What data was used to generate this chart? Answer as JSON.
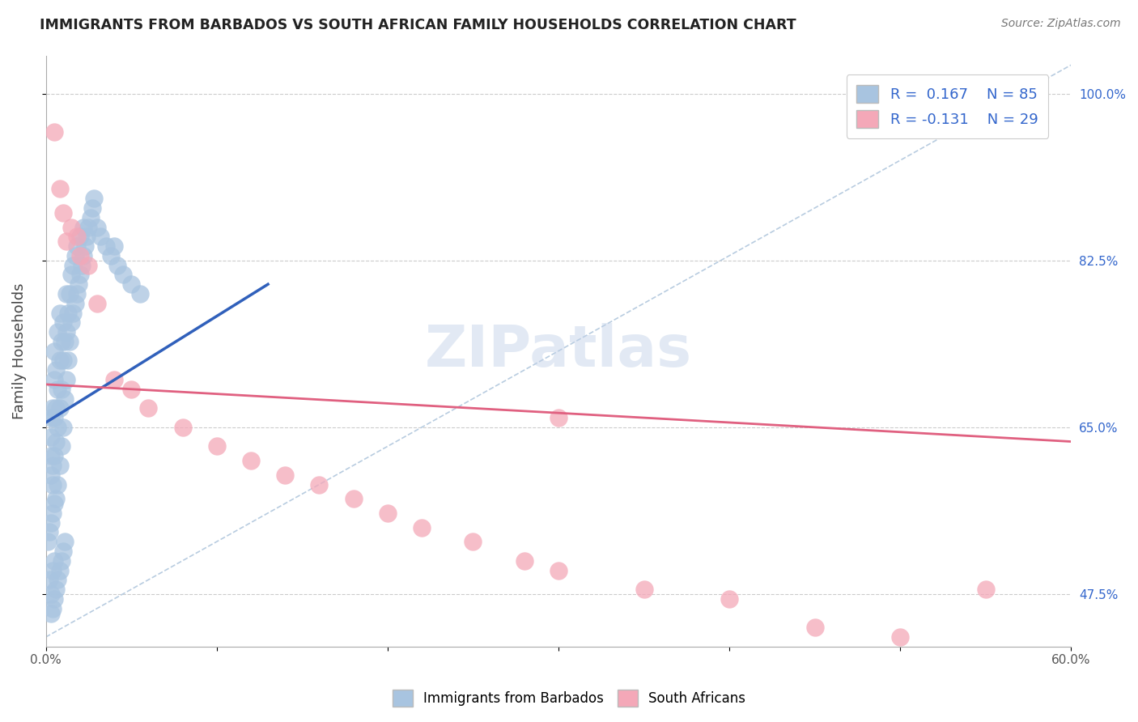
{
  "title": "IMMIGRANTS FROM BARBADOS VS SOUTH AFRICAN FAMILY HOUSEHOLDS CORRELATION CHART",
  "source": "Source: ZipAtlas.com",
  "ylabel": "Family Households",
  "xlim": [
    0.0,
    0.6
  ],
  "ylim": [
    0.42,
    1.04
  ],
  "ytick_positions": [
    0.475,
    0.65,
    0.825,
    1.0
  ],
  "ytick_labels": [
    "47.5%",
    "65.0%",
    "82.5%",
    "100.0%"
  ],
  "blue_R": 0.167,
  "blue_N": 85,
  "pink_R": -0.131,
  "pink_N": 29,
  "blue_color": "#a8c4e0",
  "pink_color": "#f4a8b8",
  "blue_line_color": "#3060bb",
  "pink_line_color": "#e06080",
  "diag_line_color": "#b8cce0",
  "watermark": "ZIPatlas",
  "legend_label_blue": "Immigrants from Barbados",
  "legend_label_pink": "South Africans",
  "blue_line_x": [
    0.0,
    0.13
  ],
  "blue_line_y": [
    0.655,
    0.8
  ],
  "pink_line_x": [
    0.0,
    0.6
  ],
  "pink_line_y": [
    0.695,
    0.635
  ],
  "diag_line_x": [
    0.0,
    0.6
  ],
  "diag_line_y": [
    0.43,
    1.03
  ],
  "blue_points_x": [
    0.001,
    0.002,
    0.002,
    0.003,
    0.003,
    0.003,
    0.003,
    0.003,
    0.004,
    0.004,
    0.004,
    0.004,
    0.004,
    0.005,
    0.005,
    0.005,
    0.005,
    0.005,
    0.005,
    0.006,
    0.006,
    0.006,
    0.006,
    0.007,
    0.007,
    0.007,
    0.007,
    0.008,
    0.008,
    0.008,
    0.008,
    0.009,
    0.009,
    0.009,
    0.01,
    0.01,
    0.01,
    0.011,
    0.011,
    0.012,
    0.012,
    0.012,
    0.013,
    0.013,
    0.014,
    0.014,
    0.015,
    0.015,
    0.016,
    0.016,
    0.017,
    0.017,
    0.018,
    0.018,
    0.019,
    0.02,
    0.02,
    0.021,
    0.022,
    0.022,
    0.023,
    0.024,
    0.025,
    0.026,
    0.027,
    0.028,
    0.03,
    0.032,
    0.035,
    0.038,
    0.04,
    0.042,
    0.045,
    0.05,
    0.055,
    0.004,
    0.005,
    0.006,
    0.007,
    0.008,
    0.009,
    0.01,
    0.011,
    0.003,
    0.003
  ],
  "blue_points_y": [
    0.53,
    0.49,
    0.54,
    0.55,
    0.6,
    0.62,
    0.64,
    0.66,
    0.5,
    0.56,
    0.59,
    0.61,
    0.67,
    0.51,
    0.57,
    0.62,
    0.66,
    0.7,
    0.73,
    0.575,
    0.635,
    0.67,
    0.71,
    0.59,
    0.65,
    0.69,
    0.75,
    0.61,
    0.67,
    0.72,
    0.77,
    0.63,
    0.69,
    0.74,
    0.65,
    0.72,
    0.76,
    0.68,
    0.74,
    0.7,
    0.75,
    0.79,
    0.72,
    0.77,
    0.74,
    0.79,
    0.76,
    0.81,
    0.77,
    0.82,
    0.78,
    0.83,
    0.79,
    0.84,
    0.8,
    0.81,
    0.85,
    0.82,
    0.83,
    0.86,
    0.84,
    0.85,
    0.86,
    0.87,
    0.88,
    0.89,
    0.86,
    0.85,
    0.84,
    0.83,
    0.84,
    0.82,
    0.81,
    0.8,
    0.79,
    0.46,
    0.47,
    0.48,
    0.49,
    0.5,
    0.51,
    0.52,
    0.53,
    0.475,
    0.455
  ],
  "pink_points_x": [
    0.005,
    0.008,
    0.01,
    0.012,
    0.015,
    0.018,
    0.02,
    0.025,
    0.03,
    0.04,
    0.05,
    0.06,
    0.08,
    0.1,
    0.12,
    0.14,
    0.16,
    0.18,
    0.2,
    0.22,
    0.25,
    0.28,
    0.3,
    0.35,
    0.4,
    0.45,
    0.5,
    0.55,
    0.3
  ],
  "pink_points_y": [
    0.96,
    0.9,
    0.875,
    0.845,
    0.86,
    0.85,
    0.83,
    0.82,
    0.78,
    0.7,
    0.69,
    0.67,
    0.65,
    0.63,
    0.615,
    0.6,
    0.59,
    0.575,
    0.56,
    0.545,
    0.53,
    0.51,
    0.5,
    0.48,
    0.47,
    0.44,
    0.43,
    0.48,
    0.66
  ]
}
